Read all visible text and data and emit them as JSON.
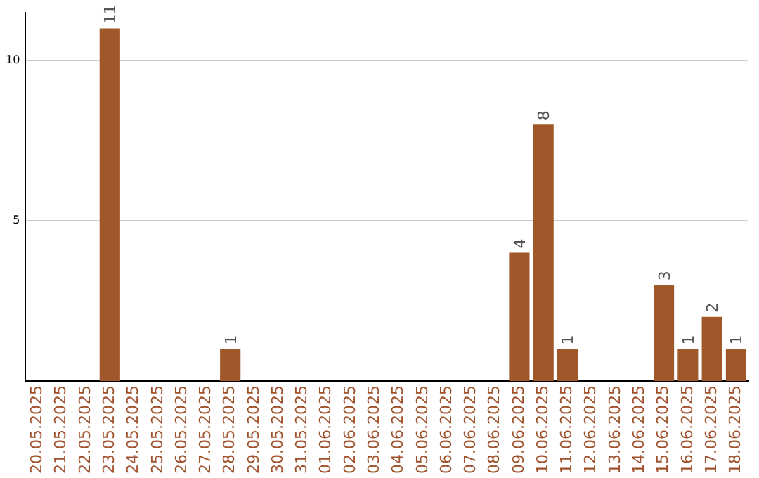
{
  "chart_data": {
    "type": "bar",
    "categories": [
      "20.05.2025",
      "21.05.2025",
      "22.05.2025",
      "23.05.2025",
      "24.05.2025",
      "25.05.2025",
      "26.05.2025",
      "27.05.2025",
      "28.05.2025",
      "29.05.2025",
      "30.05.2025",
      "31.05.2025",
      "01.06.2025",
      "02.06.2025",
      "03.06.2025",
      "04.06.2025",
      "05.06.2025",
      "06.06.2025",
      "07.06.2025",
      "08.06.2025",
      "09.06.2025",
      "10.06.2025",
      "11.06.2025",
      "12.06.2025",
      "13.06.2025",
      "14.06.2025",
      "15.06.2025",
      "16.06.2025",
      "17.06.2025",
      "18.06.2025"
    ],
    "values": [
      null,
      null,
      null,
      11,
      null,
      null,
      null,
      null,
      1,
      null,
      null,
      null,
      null,
      null,
      null,
      null,
      null,
      null,
      null,
      null,
      4,
      8,
      1,
      null,
      null,
      null,
      3,
      1,
      2,
      1
    ],
    "color": "#a0582a",
    "ylim": [
      0,
      11.5
    ],
    "yticks": [
      5,
      10
    ],
    "grid": "y",
    "legend": false,
    "data_labels": true
  }
}
